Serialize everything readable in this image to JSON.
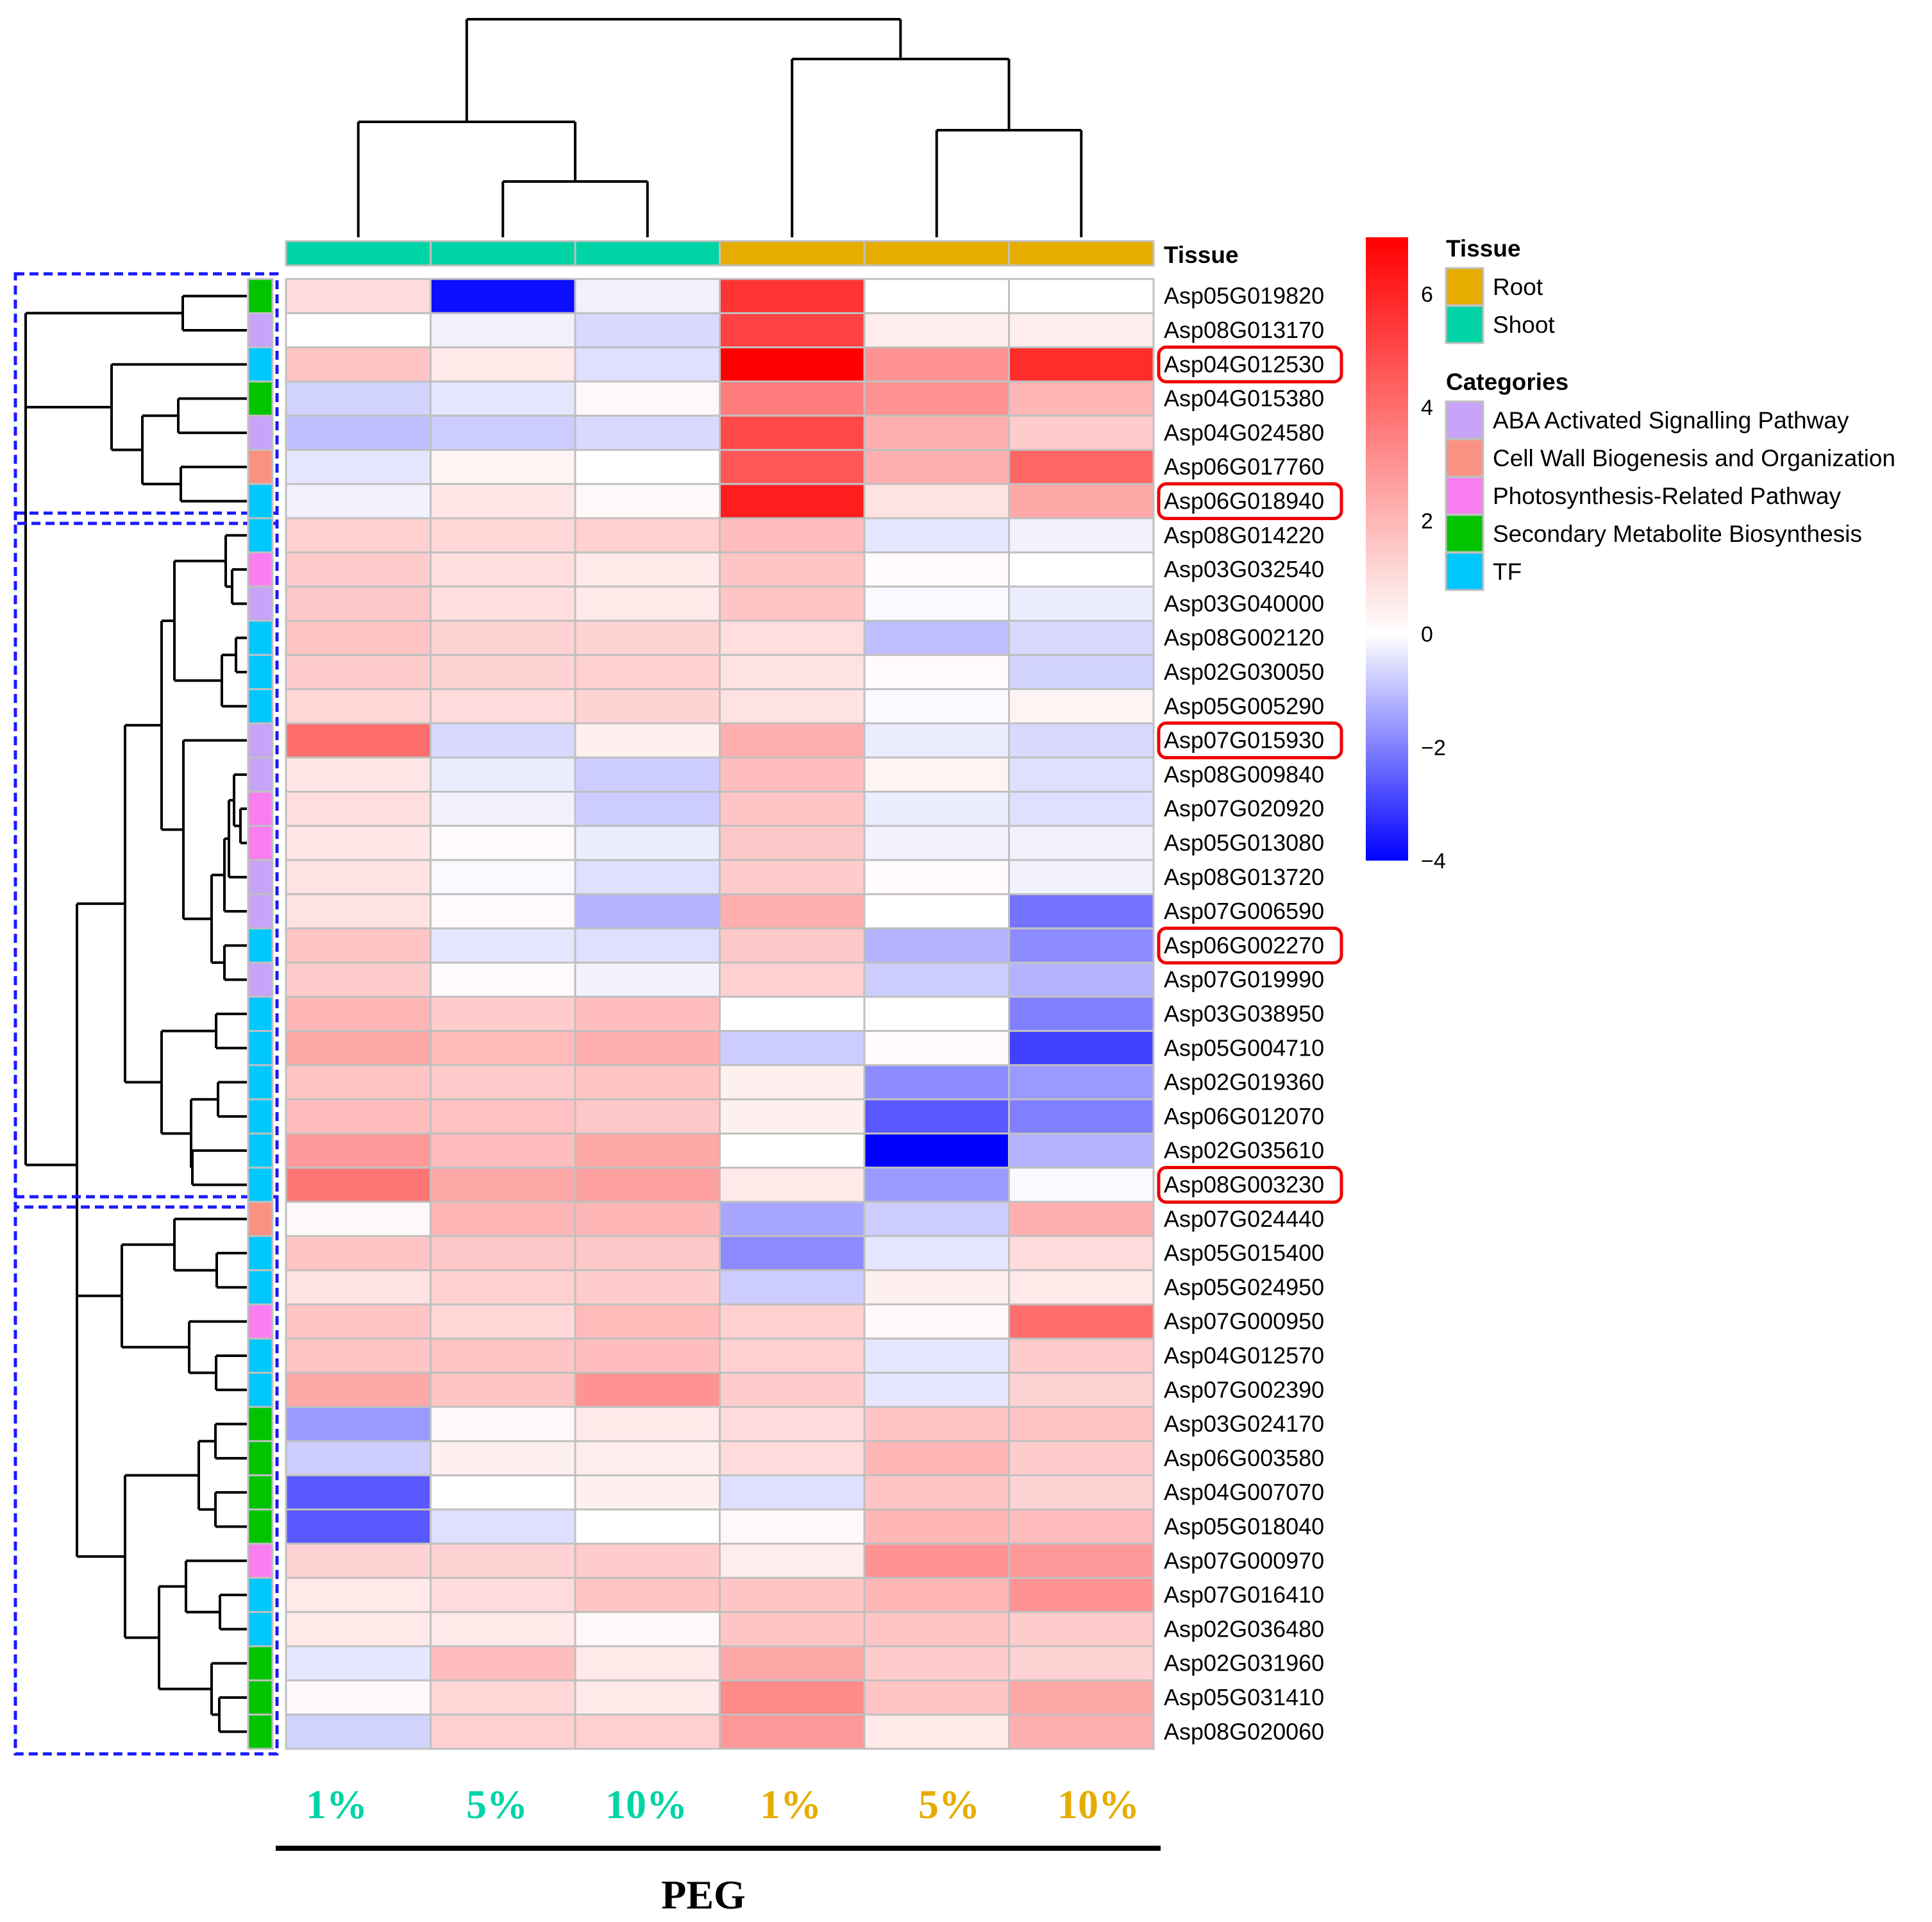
{
  "chart_data": {
    "type": "heatmap",
    "columns": [
      {
        "label": "1%",
        "tissue": "Shoot"
      },
      {
        "label": "5%",
        "tissue": "Shoot"
      },
      {
        "label": "10%",
        "tissue": "Shoot"
      },
      {
        "label": "1%",
        "tissue": "Root"
      },
      {
        "label": "5%",
        "tissue": "Root"
      },
      {
        "label": "10%",
        "tissue": "Root"
      }
    ],
    "xlabel": "PEG",
    "tissue_annotation_label": "Tissue",
    "color_scale": {
      "min": -4,
      "max": 7,
      "ticks": [
        6,
        4,
        2,
        0,
        -2,
        -4
      ],
      "low": "#0000ff",
      "mid": "#ffffff",
      "high": "#ff0000"
    },
    "rows": [
      {
        "gene": "Asp05G019820",
        "category": "Secondary Metabolite Biosynthesis",
        "values": [
          1.0,
          -3.8,
          -0.2,
          5.6,
          0.0,
          0.0
        ],
        "highlighted": false
      },
      {
        "gene": "Asp08G013170",
        "category": "ABA Activated Signalling Pathway",
        "values": [
          0.0,
          -0.2,
          -0.6,
          5.2,
          0.5,
          0.5
        ],
        "highlighted": false
      },
      {
        "gene": "Asp04G012530",
        "category": "TF",
        "values": [
          1.6,
          0.6,
          -0.5,
          7.0,
          3.0,
          5.8
        ],
        "highlighted": true
      },
      {
        "gene": "Asp04G015380",
        "category": "Secondary Metabolite Biosynthesis",
        "values": [
          -0.7,
          -0.4,
          0.2,
          3.6,
          3.0,
          2.0
        ],
        "highlighted": false
      },
      {
        "gene": "Asp04G024580",
        "category": "ABA Activated Signalling Pathway",
        "values": [
          -1.0,
          -0.8,
          -0.6,
          5.0,
          2.2,
          1.4
        ],
        "highlighted": false
      },
      {
        "gene": "Asp06G017760",
        "category": "Cell Wall Biogenesis and Organization",
        "values": [
          -0.4,
          0.3,
          0.0,
          4.6,
          2.2,
          4.2
        ],
        "highlighted": false
      },
      {
        "gene": "Asp06G018940",
        "category": "TF",
        "values": [
          -0.2,
          0.7,
          0.2,
          6.2,
          0.8,
          2.4
        ],
        "highlighted": true
      },
      {
        "gene": "Asp08G014220",
        "category": "TF",
        "values": [
          1.3,
          1.1,
          1.3,
          1.8,
          -0.4,
          -0.2
        ],
        "highlighted": false
      },
      {
        "gene": "Asp03G032540",
        "category": "Photosynthesis-Related Pathway",
        "values": [
          1.4,
          0.9,
          0.6,
          1.6,
          0.1,
          0.0
        ],
        "highlighted": false
      },
      {
        "gene": "Asp03G040000",
        "category": "ABA Activated Signalling Pathway",
        "values": [
          1.5,
          0.9,
          0.6,
          1.6,
          -0.1,
          -0.3
        ],
        "highlighted": false
      },
      {
        "gene": "Asp08G002120",
        "category": "TF",
        "values": [
          1.6,
          1.2,
          1.2,
          0.9,
          -1.0,
          -0.6
        ],
        "highlighted": false
      },
      {
        "gene": "Asp02G030050",
        "category": "TF",
        "values": [
          1.4,
          1.2,
          1.3,
          0.8,
          0.1,
          -0.7
        ],
        "highlighted": false
      },
      {
        "gene": "Asp05G005290",
        "category": "TF",
        "values": [
          1.1,
          1.0,
          1.2,
          0.8,
          -0.1,
          0.3
        ],
        "highlighted": false
      },
      {
        "gene": "Asp07G015930",
        "category": "ABA Activated Signalling Pathway",
        "values": [
          4.0,
          -0.6,
          0.4,
          2.2,
          -0.3,
          -0.6
        ],
        "highlighted": true
      },
      {
        "gene": "Asp08G009840",
        "category": "ABA Activated Signalling Pathway",
        "values": [
          0.7,
          -0.3,
          -0.8,
          1.8,
          0.3,
          -0.5
        ],
        "highlighted": false
      },
      {
        "gene": "Asp07G020920",
        "category": "Photosynthesis-Related Pathway",
        "values": [
          0.9,
          -0.2,
          -0.8,
          1.6,
          -0.3,
          -0.5
        ],
        "highlighted": false
      },
      {
        "gene": "Asp05G013080",
        "category": "Photosynthesis-Related Pathway",
        "values": [
          0.7,
          0.1,
          -0.3,
          1.5,
          -0.2,
          -0.2
        ],
        "highlighted": false
      },
      {
        "gene": "Asp08G013720",
        "category": "ABA Activated Signalling Pathway",
        "values": [
          0.8,
          -0.1,
          -0.5,
          1.4,
          0.1,
          -0.2
        ],
        "highlighted": false
      },
      {
        "gene": "Asp07G006590",
        "category": "ABA Activated Signalling Pathway",
        "values": [
          0.8,
          0.1,
          -1.2,
          2.2,
          0.0,
          -2.2
        ],
        "highlighted": false
      },
      {
        "gene": "Asp06G002270",
        "category": "TF",
        "values": [
          1.6,
          -0.4,
          -0.5,
          1.5,
          -1.2,
          -1.8
        ],
        "highlighted": true
      },
      {
        "gene": "Asp07G019990",
        "category": "ABA Activated Signalling Pathway",
        "values": [
          1.4,
          0.1,
          -0.2,
          1.3,
          -0.8,
          -1.2
        ],
        "highlighted": false
      },
      {
        "gene": "Asp03G038950",
        "category": "TF",
        "values": [
          2.0,
          1.4,
          1.8,
          0.0,
          0.0,
          -2.0
        ],
        "highlighted": false
      },
      {
        "gene": "Asp05G004710",
        "category": "TF",
        "values": [
          2.4,
          1.9,
          2.2,
          -0.8,
          0.1,
          -3.0
        ],
        "highlighted": false
      },
      {
        "gene": "Asp02G019360",
        "category": "TF",
        "values": [
          1.6,
          1.4,
          1.6,
          0.4,
          -1.8,
          -1.6
        ],
        "highlighted": false
      },
      {
        "gene": "Asp06G012070",
        "category": "TF",
        "values": [
          1.8,
          1.7,
          1.5,
          0.4,
          -2.6,
          -2.0
        ],
        "highlighted": false
      },
      {
        "gene": "Asp02G035610",
        "category": "TF",
        "values": [
          2.8,
          1.8,
          2.4,
          0.0,
          -4.0,
          -1.2
        ],
        "highlighted": false
      },
      {
        "gene": "Asp08G003230",
        "category": "TF",
        "values": [
          3.8,
          2.4,
          2.6,
          0.6,
          -1.6,
          -0.1
        ],
        "highlighted": true
      },
      {
        "gene": "Asp07G024440",
        "category": "Cell Wall Biogenesis and Organization",
        "values": [
          0.2,
          2.0,
          2.0,
          -1.4,
          -0.8,
          2.2
        ],
        "highlighted": false
      },
      {
        "gene": "Asp05G015400",
        "category": "TF",
        "values": [
          1.6,
          1.5,
          1.5,
          -1.8,
          -0.4,
          1.0
        ],
        "highlighted": false
      },
      {
        "gene": "Asp05G024950",
        "category": "TF",
        "values": [
          0.8,
          1.3,
          1.4,
          -0.8,
          0.4,
          0.6
        ],
        "highlighted": false
      },
      {
        "gene": "Asp07G000950",
        "category": "Photosynthesis-Related Pathway",
        "values": [
          1.6,
          1.1,
          1.9,
          1.3,
          0.2,
          4.0
        ],
        "highlighted": false
      },
      {
        "gene": "Asp04G012570",
        "category": "TF",
        "values": [
          1.6,
          1.6,
          1.8,
          1.3,
          -0.4,
          1.4
        ],
        "highlighted": false
      },
      {
        "gene": "Asp07G002390",
        "category": "TF",
        "values": [
          2.4,
          1.6,
          3.0,
          1.4,
          -0.4,
          1.2
        ],
        "highlighted": false
      },
      {
        "gene": "Asp03G024170",
        "category": "Secondary Metabolite Biosynthesis",
        "values": [
          -1.6,
          0.2,
          0.6,
          1.0,
          1.6,
          1.6
        ],
        "highlighted": false
      },
      {
        "gene": "Asp06G003580",
        "category": "Secondary Metabolite Biosynthesis",
        "values": [
          -0.8,
          0.4,
          0.5,
          1.0,
          2.0,
          1.4
        ],
        "highlighted": false
      },
      {
        "gene": "Asp04G007070",
        "category": "Secondary Metabolite Biosynthesis",
        "values": [
          -2.6,
          0.0,
          0.4,
          -0.5,
          1.6,
          1.2
        ],
        "highlighted": false
      },
      {
        "gene": "Asp05G018040",
        "category": "Secondary Metabolite Biosynthesis",
        "values": [
          -2.6,
          -0.5,
          0.0,
          0.2,
          2.0,
          1.8
        ],
        "highlighted": false
      },
      {
        "gene": "Asp07G000970",
        "category": "Photosynthesis-Related Pathway",
        "values": [
          1.2,
          1.2,
          1.4,
          0.5,
          3.0,
          2.8
        ],
        "highlighted": false
      },
      {
        "gene": "Asp07G016410",
        "category": "TF",
        "values": [
          0.6,
          1.0,
          1.6,
          1.6,
          2.0,
          3.0
        ],
        "highlighted": false
      },
      {
        "gene": "Asp02G036480",
        "category": "TF",
        "values": [
          0.6,
          0.6,
          0.2,
          1.6,
          1.6,
          1.4
        ],
        "highlighted": false
      },
      {
        "gene": "Asp02G031960",
        "category": "Secondary Metabolite Biosynthesis",
        "values": [
          -0.4,
          1.8,
          0.6,
          2.4,
          1.4,
          1.2
        ],
        "highlighted": false
      },
      {
        "gene": "Asp05G031410",
        "category": "Secondary Metabolite Biosynthesis",
        "values": [
          0.2,
          1.1,
          0.6,
          3.2,
          1.6,
          2.4
        ],
        "highlighted": false
      },
      {
        "gene": "Asp08G020060",
        "category": "Secondary Metabolite Biosynthesis",
        "values": [
          -0.7,
          1.3,
          1.3,
          2.8,
          0.6,
          2.2
        ],
        "highlighted": false
      }
    ],
    "legend": {
      "tissue_title": "Tissue",
      "tissue": [
        {
          "name": "Root",
          "color": "#e6ad00"
        },
        {
          "name": "Shoot",
          "color": "#00d4a6"
        }
      ],
      "categories_title": "Categories",
      "categories": [
        {
          "name": "ABA Activated Signalling Pathway",
          "color": "#c8a4f8"
        },
        {
          "name": "Cell Wall Biogenesis and Organization",
          "color": "#fa9283"
        },
        {
          "name": "Photosynthesis-Related Pathway",
          "color": "#f97ef1"
        },
        {
          "name": "Secondary Metabolite Biosynthesis",
          "color": "#00c400"
        },
        {
          "name": "TF",
          "color": "#00c8ff"
        }
      ]
    },
    "column_label_colors": {
      "Shoot": "#00d4a6",
      "Root": "#e6ad00"
    },
    "highlight_color": "#ee0000",
    "cluster_box_color": "#1a1aff"
  }
}
